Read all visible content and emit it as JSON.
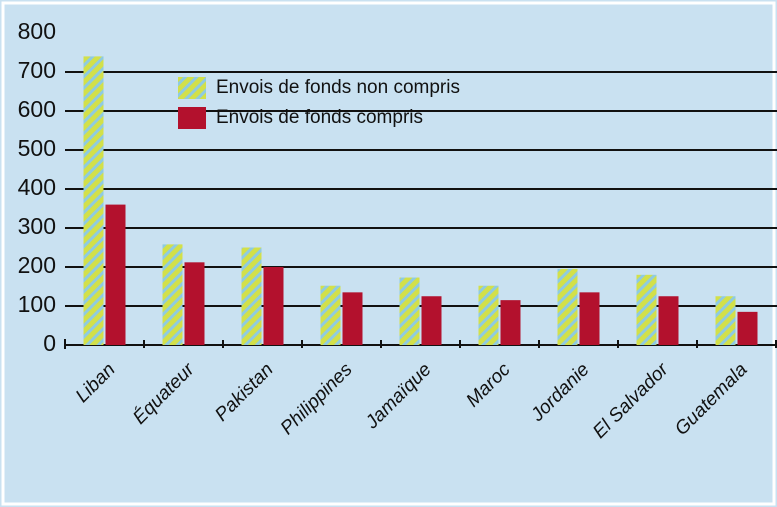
{
  "chart_data": {
    "type": "bar",
    "categories": [
      "Liban",
      "Équateur",
      "Pakistan",
      "Philippines",
      "Jamaïque",
      "Maroc",
      "Jordanie",
      "El Salvador",
      "Guatemala"
    ],
    "series": [
      {
        "name": "Envois de fonds non compris",
        "color": "#d2e04a",
        "values": [
          740,
          258,
          250,
          152,
          173,
          152,
          195,
          180,
          125
        ]
      },
      {
        "name": "Envois de fonds compris",
        "color": "#b3112d",
        "values": [
          360,
          212,
          200,
          135,
          125,
          115,
          135,
          125,
          85
        ]
      }
    ],
    "ylim": [
      0,
      800
    ],
    "yticks": [
      0,
      100,
      200,
      300,
      400,
      500,
      600,
      700,
      800
    ],
    "grid": true,
    "legend": "upper left"
  }
}
